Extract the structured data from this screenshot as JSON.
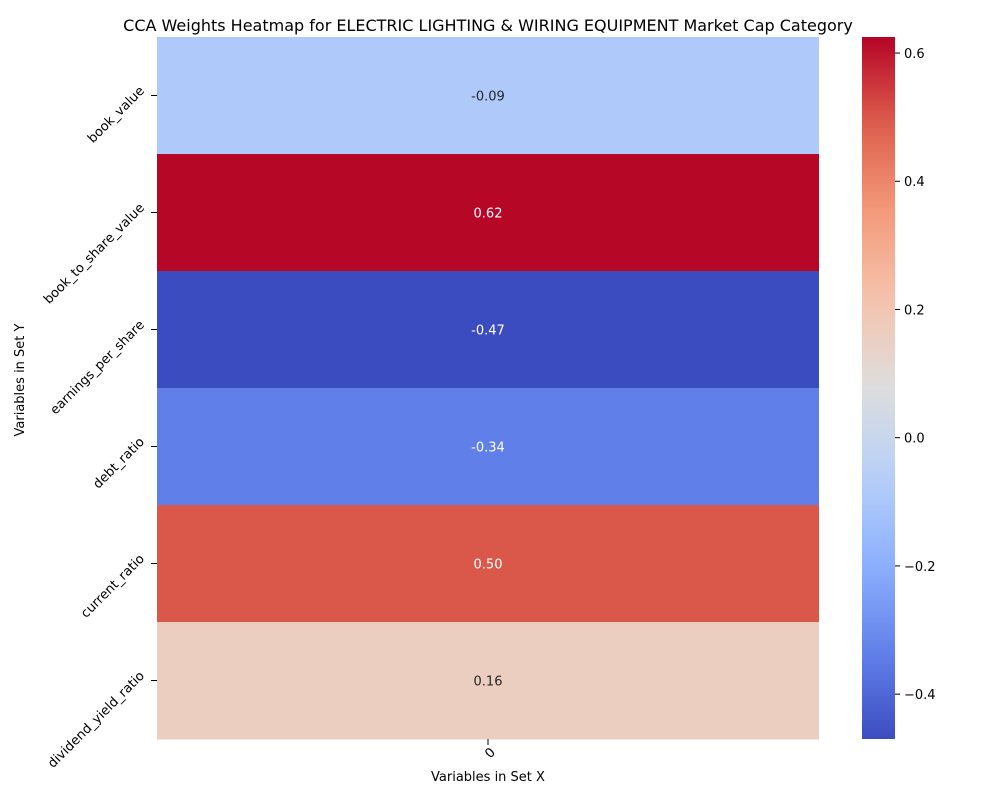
{
  "chart_data": {
    "type": "heatmap",
    "title": "CCA Weights Heatmap for ELECTRIC LIGHTING & WIRING EQUIPMENT Market Cap Category",
    "xlabel": "Variables in Set X",
    "ylabel": "Variables in Set Y",
    "x_categories": [
      "0"
    ],
    "y_categories": [
      "book_value",
      "book_to_share_value",
      "earnings_per_share",
      "debt_ratio",
      "current_ratio",
      "dividend_yield_ratio"
    ],
    "values": [
      [
        -0.09
      ],
      [
        0.62
      ],
      [
        -0.47
      ],
      [
        -0.34
      ],
      [
        0.5
      ],
      [
        0.16
      ]
    ],
    "value_labels": [
      "-0.09",
      "0.62",
      "-0.47",
      "-0.34",
      "0.50",
      "0.16"
    ],
    "colormap": "coolwarm",
    "color_range": [
      -0.47,
      0.625
    ],
    "colorbar_ticks": [
      0.6,
      0.4,
      0.2,
      0.0,
      -0.2,
      -0.4
    ],
    "colorbar_tick_labels": [
      "0.6",
      "0.4",
      "0.2",
      "0.0",
      "−0.2",
      "−0.4"
    ]
  }
}
